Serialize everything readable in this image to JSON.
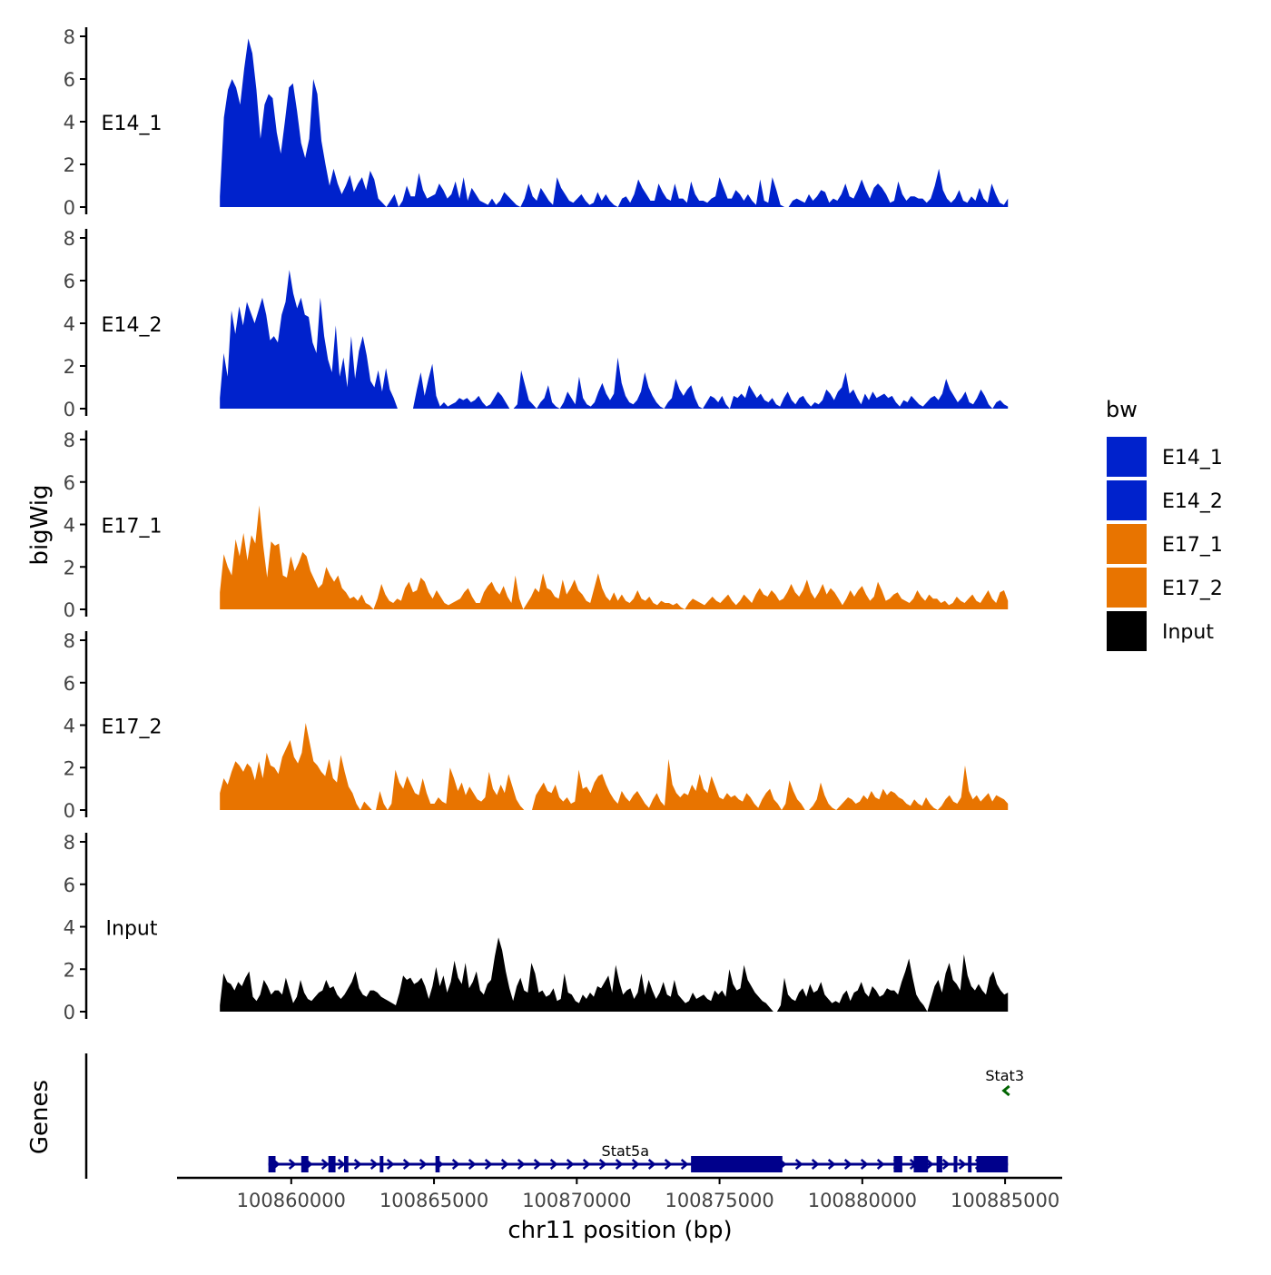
{
  "chart_data": {
    "type": "area",
    "ylabel": "bigWig",
    "xlabel": "chr11 position (bp)",
    "genes_label": "Genes",
    "legend": {
      "title": "bw",
      "position": "right",
      "entries": [
        {
          "label": "E14_1",
          "color": "#0022CC"
        },
        {
          "label": "E14_2",
          "color": "#0022CC"
        },
        {
          "label": "E17_1",
          "color": "#E87400"
        },
        {
          "label": "E17_2",
          "color": "#E87400"
        },
        {
          "label": "Input",
          "color": "#000000"
        }
      ]
    },
    "ylim": [
      0,
      8
    ],
    "y_ticks": [
      0,
      2,
      4,
      6,
      8
    ],
    "y_tick_labels": [
      "0",
      "2",
      "4",
      "6",
      "8"
    ],
    "xlim": [
      100856000,
      100887000
    ],
    "x_ticks": [
      100860000,
      100865000,
      100870000,
      100875000,
      100880000,
      100885000
    ],
    "x_tick_labels": [
      "100860000",
      "100865000",
      "100870000",
      "100875000",
      "100880000",
      "100885000"
    ],
    "track_x_range": [
      100857500,
      100885100
    ],
    "series": [
      {
        "name": "E14_1",
        "color": "#0022CC",
        "values": [
          0.5,
          4.2,
          5.5,
          6,
          5.6,
          4.8,
          6.5,
          7.9,
          7.2,
          5.5,
          3.2,
          4.8,
          5.3,
          5.1,
          3.5,
          2.5,
          4,
          5.6,
          5.8,
          4.5,
          3.0,
          2.3,
          3.2,
          6,
          5.3,
          3.1,
          2.0,
          1.0,
          1.8,
          1.1,
          0.6,
          1.0,
          1.5,
          0.7,
          1.1,
          1.4,
          0.8,
          1.7,
          1.3,
          0.4,
          0.2,
          0.0,
          0.3,
          0.6,
          0.0,
          0.3,
          1.0,
          0.5,
          0.5,
          1.6,
          0.8,
          0.4,
          0.5,
          0.6,
          1.1,
          0.8,
          0.4,
          0.6,
          1.2,
          0.4,
          1.4,
          0.3,
          0.9,
          0.6,
          0.3,
          0.2,
          0.1,
          0.4,
          0.1,
          0.3,
          0.7,
          0.5,
          0.3,
          0.1,
          0.0,
          0.4,
          1.1,
          0.5,
          0.3,
          0.9,
          0.6,
          0.3,
          0.1,
          1.4,
          0.9,
          0.6,
          0.3,
          0.2,
          0.4,
          0.6,
          0.3,
          0.1,
          0.2,
          0.7,
          0.3,
          0.6,
          0.3,
          0.1,
          0.0,
          0.4,
          0.5,
          0.2,
          0.6,
          1.3,
          0.9,
          0.6,
          0.3,
          0.3,
          1.1,
          0.7,
          0.4,
          0.3,
          1.1,
          0.4,
          0.4,
          0.2,
          1.2,
          0.6,
          0.3,
          0.3,
          0.2,
          0.4,
          0.5,
          1.4,
          0.9,
          0.4,
          0.4,
          0.8,
          0.6,
          0.3,
          0.6,
          0.3,
          0.1,
          1.3,
          0.3,
          0.2,
          1.4,
          0.8,
          0.1,
          0.0,
          0.0,
          0.3,
          0.4,
          0.3,
          0.2,
          0.6,
          0.3,
          0.5,
          0.8,
          0.7,
          0.2,
          0.4,
          0.3,
          0.6,
          1.1,
          0.5,
          0.4,
          0.8,
          1.3,
          0.8,
          0.4,
          0.9,
          1.1,
          0.9,
          0.6,
          0.2,
          0.3,
          1.2,
          0.6,
          0.3,
          0.5,
          0.5,
          0.4,
          0.4,
          0.2,
          0.4,
          1.0,
          1.8,
          0.8,
          0.4,
          0.2,
          0.4,
          0.8,
          0.3,
          0.2,
          0.5,
          0.3,
          0.9,
          0.4,
          0.2,
          1.1,
          0.6,
          0.2,
          0.1,
          0.4
        ]
      },
      {
        "name": "E14_2",
        "color": "#0022CC",
        "values": [
          0.5,
          2.6,
          1.5,
          4.6,
          3.5,
          4.8,
          3.9,
          5.0,
          4.5,
          4.0,
          4.6,
          5.2,
          4.4,
          3.2,
          3.4,
          3.1,
          4.4,
          5.0,
          6.5,
          5.4,
          4.7,
          5.2,
          4.4,
          4.3,
          3.1,
          2.6,
          5.2,
          3.4,
          2.3,
          1.7,
          3.9,
          1.5,
          2.4,
          1.0,
          3.4,
          1.4,
          2.7,
          3.4,
          2.5,
          1.3,
          1.0,
          1.8,
          0.8,
          1.9,
          0.9,
          0.5,
          0.0,
          0.0,
          0.0,
          0.0,
          0.0,
          0.9,
          1.7,
          0.6,
          1.4,
          2.1,
          0.6,
          0.1,
          0.3,
          0.1,
          0.2,
          0.3,
          0.5,
          0.4,
          0.5,
          0.3,
          0.4,
          0.6,
          0.3,
          0.1,
          0.2,
          0.5,
          0.8,
          0.6,
          0.3,
          0.0,
          0.0,
          0.2,
          1.8,
          1.1,
          0.4,
          0.2,
          0.0,
          0.3,
          0.5,
          1.1,
          0.3,
          0.1,
          0.0,
          0.3,
          0.8,
          0.5,
          0.2,
          1.5,
          0.5,
          0.2,
          0.1,
          0.3,
          0.8,
          1.2,
          0.7,
          0.4,
          0.7,
          2.4,
          1.2,
          0.6,
          0.3,
          0.2,
          0.4,
          0.8,
          1.7,
          1.0,
          0.6,
          0.3,
          0.1,
          0.0,
          0.3,
          0.5,
          1.4,
          0.9,
          0.6,
          0.9,
          1.1,
          0.5,
          0.1,
          0.0,
          0.3,
          0.6,
          0.5,
          0.3,
          0.6,
          0.2,
          0.0,
          0.6,
          0.5,
          0.7,
          0.5,
          1.1,
          0.8,
          0.5,
          0.7,
          0.4,
          0.3,
          0.5,
          0.2,
          0.1,
          0.5,
          0.8,
          0.4,
          0.2,
          0.5,
          0.6,
          0.3,
          0.1,
          0.3,
          0.2,
          0.4,
          0.9,
          0.7,
          0.4,
          0.8,
          1.0,
          1.7,
          0.7,
          0.9,
          0.5,
          0.2,
          0.7,
          0.4,
          0.8,
          0.5,
          0.6,
          0.7,
          0.5,
          0.6,
          0.3,
          0.1,
          0.4,
          0.3,
          0.6,
          0.4,
          0.2,
          0.1,
          0.3,
          0.5,
          0.6,
          0.4,
          0.7,
          1.4,
          0.9,
          0.6,
          0.3,
          0.5,
          0.8,
          0.3,
          0.2,
          0.5,
          0.9,
          0.6,
          0.2,
          0.0,
          0.3,
          0.4,
          0.2,
          0.1
        ]
      },
      {
        "name": "E17_1",
        "color": "#E87400",
        "values": [
          0.8,
          2.6,
          2.0,
          1.6,
          3.3,
          2.5,
          3.6,
          2.3,
          3.5,
          3.1,
          4.9,
          3.0,
          1.5,
          3.2,
          3.0,
          3.1,
          1.6,
          1.5,
          2.5,
          1.8,
          2.2,
          2.7,
          2.5,
          1.8,
          1.4,
          1.0,
          1.2,
          2.0,
          1.6,
          1.3,
          1.6,
          1.0,
          0.8,
          0.5,
          0.6,
          0.4,
          0.7,
          0.3,
          0.2,
          0.0,
          0.5,
          1.2,
          0.7,
          0.4,
          0.3,
          0.5,
          0.4,
          1.0,
          1.3,
          0.8,
          0.9,
          1.5,
          1.3,
          0.8,
          0.5,
          0.9,
          0.6,
          0.3,
          0.2,
          0.3,
          0.4,
          0.5,
          0.8,
          1.0,
          0.6,
          0.3,
          0.3,
          0.8,
          1.1,
          1.3,
          0.9,
          0.7,
          1.1,
          0.6,
          0.3,
          1.6,
          0.5,
          0.0,
          0.3,
          0.6,
          1.0,
          0.8,
          1.7,
          1.0,
          0.9,
          0.6,
          0.5,
          1.4,
          0.7,
          1.0,
          1.4,
          0.9,
          0.7,
          0.4,
          0.3,
          1.0,
          1.7,
          1.0,
          0.6,
          0.4,
          0.8,
          0.4,
          0.7,
          0.4,
          0.3,
          0.5,
          0.9,
          0.5,
          0.4,
          0.6,
          0.3,
          0.2,
          0.4,
          0.3,
          0.3,
          0.2,
          0.3,
          0.1,
          0.0,
          0.3,
          0.5,
          0.4,
          0.3,
          0.2,
          0.4,
          0.6,
          0.4,
          0.3,
          0.5,
          0.7,
          0.4,
          0.2,
          0.4,
          0.7,
          0.5,
          0.3,
          0.7,
          1.0,
          0.7,
          0.6,
          0.9,
          0.7,
          0.4,
          0.5,
          0.8,
          1.2,
          0.8,
          0.6,
          0.9,
          1.4,
          0.8,
          0.5,
          0.8,
          1.2,
          0.7,
          1.0,
          0.8,
          0.5,
          0.2,
          0.5,
          0.9,
          0.6,
          0.9,
          1.1,
          0.7,
          0.4,
          0.6,
          1.3,
          0.9,
          0.4,
          0.5,
          0.7,
          0.8,
          0.5,
          0.4,
          0.3,
          0.5,
          0.9,
          0.6,
          0.4,
          0.7,
          0.5,
          0.5,
          0.3,
          0.4,
          0.2,
          0.3,
          0.6,
          0.4,
          0.3,
          0.5,
          0.7,
          0.4,
          0.3,
          0.6,
          0.9,
          0.5,
          0.3,
          0.8,
          0.9,
          0.4
        ]
      },
      {
        "name": "E17_2",
        "color": "#E87400",
        "values": [
          0.8,
          1.5,
          1.2,
          1.8,
          2.3,
          2.1,
          1.8,
          2.2,
          2.0,
          1.4,
          2.3,
          1.5,
          2.7,
          2.1,
          2.0,
          1.7,
          2.5,
          2.9,
          3.3,
          2.5,
          2.2,
          2.7,
          4.1,
          3.2,
          2.3,
          2.1,
          1.8,
          1.6,
          2.4,
          1.5,
          1.3,
          2.6,
          1.8,
          1.1,
          0.8,
          0.3,
          0.0,
          0.4,
          0.2,
          0.0,
          0.0,
          0.9,
          0.3,
          0.0,
          0.3,
          1.9,
          1.3,
          1.0,
          1.6,
          1.2,
          0.8,
          0.7,
          1.5,
          0.8,
          0.3,
          0.3,
          0.6,
          0.4,
          0.3,
          2.0,
          1.5,
          0.9,
          1.3,
          0.7,
          1.1,
          0.8,
          0.5,
          0.4,
          0.6,
          1.8,
          1.0,
          0.7,
          1.2,
          0.8,
          1.7,
          1.1,
          0.5,
          0.2,
          0.0,
          0.0,
          0.0,
          0.7,
          1.0,
          1.3,
          0.9,
          0.8,
          1.2,
          0.6,
          0.4,
          0.6,
          0.3,
          0.4,
          1.9,
          1.0,
          1.1,
          0.8,
          1.3,
          1.6,
          1.7,
          1.2,
          0.8,
          0.5,
          0.3,
          0.9,
          0.6,
          0.4,
          0.7,
          0.9,
          0.6,
          0.3,
          0.1,
          0.5,
          0.8,
          0.4,
          0.2,
          2.4,
          1.2,
          0.8,
          0.6,
          0.8,
          0.7,
          1.2,
          0.9,
          1.7,
          1.0,
          0.8,
          1.6,
          1.1,
          0.6,
          0.5,
          0.8,
          0.6,
          0.7,
          0.5,
          0.4,
          0.8,
          0.6,
          0.3,
          0.1,
          0.5,
          0.8,
          1.0,
          0.5,
          0.3,
          0.0,
          0.3,
          1.4,
          0.9,
          0.5,
          0.3,
          0.0,
          0.0,
          0.2,
          0.5,
          1.3,
          0.7,
          0.3,
          0.1,
          0.0,
          0.2,
          0.4,
          0.6,
          0.5,
          0.3,
          0.4,
          0.7,
          0.5,
          0.9,
          0.6,
          0.5,
          1.0,
          0.7,
          0.9,
          0.8,
          0.6,
          0.5,
          0.3,
          0.2,
          0.5,
          0.3,
          0.2,
          0.6,
          0.3,
          0.1,
          0.0,
          0.2,
          0.5,
          0.7,
          0.4,
          0.3,
          0.6,
          2.1,
          0.9,
          0.5,
          0.7,
          0.4,
          0.6,
          0.8,
          0.4,
          0.7,
          0.6,
          0.5,
          0.3
        ]
      },
      {
        "name": "Input",
        "color": "#000000",
        "values": [
          0.3,
          1.8,
          1.4,
          1.3,
          1.0,
          1.4,
          1.2,
          1.6,
          1.9,
          0.7,
          0.5,
          0.8,
          1.5,
          1.2,
          0.8,
          1.0,
          1.0,
          0.8,
          1.6,
          1.0,
          0.4,
          0.7,
          1.5,
          0.9,
          0.6,
          0.5,
          0.7,
          0.9,
          1.0,
          1.5,
          1.1,
          1.2,
          0.8,
          0.6,
          0.8,
          1.1,
          1.4,
          1.9,
          1.1,
          0.8,
          0.7,
          1.0,
          1.0,
          0.9,
          0.7,
          0.6,
          0.5,
          0.4,
          0.3,
          0.9,
          1.7,
          1.5,
          1.6,
          1.3,
          1.4,
          1.6,
          1.2,
          0.6,
          1.2,
          2.1,
          1.2,
          1.7,
          0.9,
          1.4,
          2.4,
          1.6,
          1.3,
          2.3,
          1.1,
          1.4,
          1.9,
          1.0,
          0.8,
          1.3,
          1.5,
          2.6,
          3.5,
          2.9,
          1.9,
          1.1,
          0.5,
          1.2,
          1.6,
          1.0,
          0.9,
          2.3,
          1.8,
          0.9,
          1.0,
          0.7,
          0.8,
          1.1,
          0.5,
          0.6,
          1.8,
          0.9,
          0.8,
          0.5,
          0.4,
          0.8,
          0.6,
          0.9,
          0.7,
          1.2,
          1.1,
          1.4,
          1.7,
          0.9,
          2.2,
          1.4,
          0.8,
          1.0,
          1.1,
          0.6,
          0.9,
          1.8,
          0.8,
          1.5,
          1.0,
          0.6,
          0.9,
          1.4,
          0.8,
          0.7,
          1.5,
          0.8,
          0.6,
          0.4,
          0.5,
          0.9,
          0.6,
          0.7,
          0.8,
          0.6,
          0.5,
          1.0,
          0.8,
          1.0,
          0.7,
          2.0,
          1.3,
          1.0,
          1.1,
          2.2,
          1.5,
          1.2,
          0.9,
          0.7,
          0.5,
          0.4,
          0.2,
          0.0,
          0.0,
          0.3,
          1.6,
          0.8,
          0.6,
          0.5,
          0.9,
          1.1,
          0.7,
          1.3,
          0.9,
          1.0,
          1.4,
          0.8,
          0.6,
          0.4,
          0.5,
          0.4,
          0.8,
          1.0,
          0.5,
          0.9,
          1.0,
          1.4,
          0.9,
          0.7,
          1.2,
          1.0,
          0.7,
          0.8,
          1.1,
          1.0,
          1.0,
          0.8,
          1.4,
          1.9,
          2.5,
          1.6,
          0.8,
          0.5,
          0.3,
          0.0,
          0.6,
          1.2,
          1.5,
          0.9,
          1.8,
          2.3,
          1.5,
          1.3,
          1.0,
          2.7,
          1.7,
          1.2,
          1.0,
          1.3,
          1.0,
          0.8,
          1.6,
          1.9,
          1.3,
          1.0,
          0.8,
          0.9
        ]
      }
    ],
    "genes": [
      {
        "name": "Stat5a",
        "strand": "+",
        "color": "#00008B",
        "start": 100859200,
        "end": 100885100,
        "exons": [
          [
            100859200,
            100859450
          ],
          [
            100860350,
            100860600
          ],
          [
            100861300,
            100861550
          ],
          [
            100861850,
            100862000
          ],
          [
            100863100,
            100863200
          ],
          [
            100865050,
            100865200
          ],
          [
            100874000,
            100877200
          ],
          [
            100881100,
            100881400
          ],
          [
            100881800,
            100882300
          ],
          [
            100882600,
            100882800
          ],
          [
            100883200,
            100883300
          ],
          [
            100883700,
            100883800
          ],
          [
            100884000,
            100885100
          ]
        ]
      },
      {
        "name": "Stat3",
        "strand": "-",
        "color": "#006400",
        "start": 100885000,
        "end": 100885100,
        "exons": []
      }
    ]
  }
}
